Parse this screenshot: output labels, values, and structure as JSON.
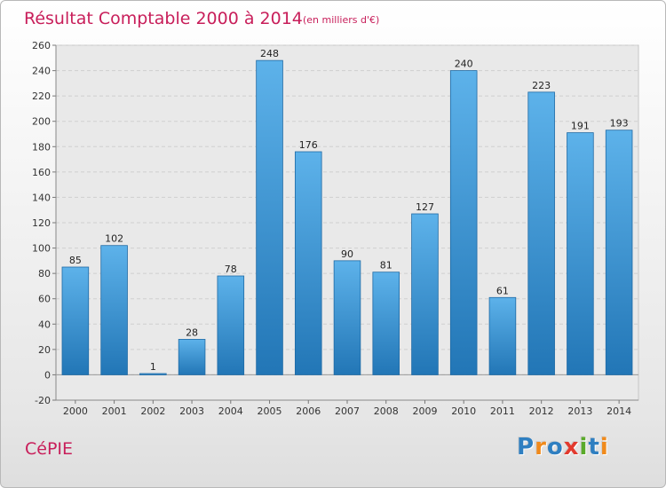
{
  "chart_data": {
    "type": "bar",
    "title": "Résultat Comptable 2000 à 2014",
    "unit": "(en milliers d'€)",
    "categories": [
      "2000",
      "2001",
      "2002",
      "2003",
      "2004",
      "2005",
      "2006",
      "2007",
      "2008",
      "2009",
      "2010",
      "2011",
      "2012",
      "2013",
      "2014"
    ],
    "values": [
      85,
      102,
      1,
      28,
      78,
      248,
      176,
      90,
      81,
      127,
      240,
      61,
      223,
      191,
      193
    ],
    "data_labels": [
      "85",
      "102",
      "1",
      "28",
      "78",
      "248",
      "176",
      "90",
      "81",
      "127",
      "240",
      "61",
      "223",
      "191",
      "193"
    ],
    "y_ticks": [
      -20,
      0,
      20,
      40,
      60,
      80,
      100,
      120,
      140,
      160,
      180,
      200,
      220,
      240,
      260
    ],
    "ylim": [
      -20,
      260
    ],
    "grid": true,
    "xlabel": "",
    "ylabel": ""
  },
  "footer": {
    "commune": "CéPIE",
    "brand": "Proxiti",
    "brand_letters": [
      {
        "ch": "P",
        "color": "#2f7fc1"
      },
      {
        "ch": "r",
        "color": "#f08a1c"
      },
      {
        "ch": "o",
        "color": "#2f7fc1"
      },
      {
        "ch": "x",
        "color": "#e23a2e"
      },
      {
        "ch": "i",
        "color": "#5aaa2a"
      },
      {
        "ch": "t",
        "color": "#2f7fc1"
      },
      {
        "ch": "i",
        "color": "#f08a1c"
      }
    ]
  },
  "colors": {
    "accent": "#c81e5a",
    "bar_light": "#5db2ea",
    "bar_dark": "#2276b6",
    "grid": "#cfcfcf"
  }
}
